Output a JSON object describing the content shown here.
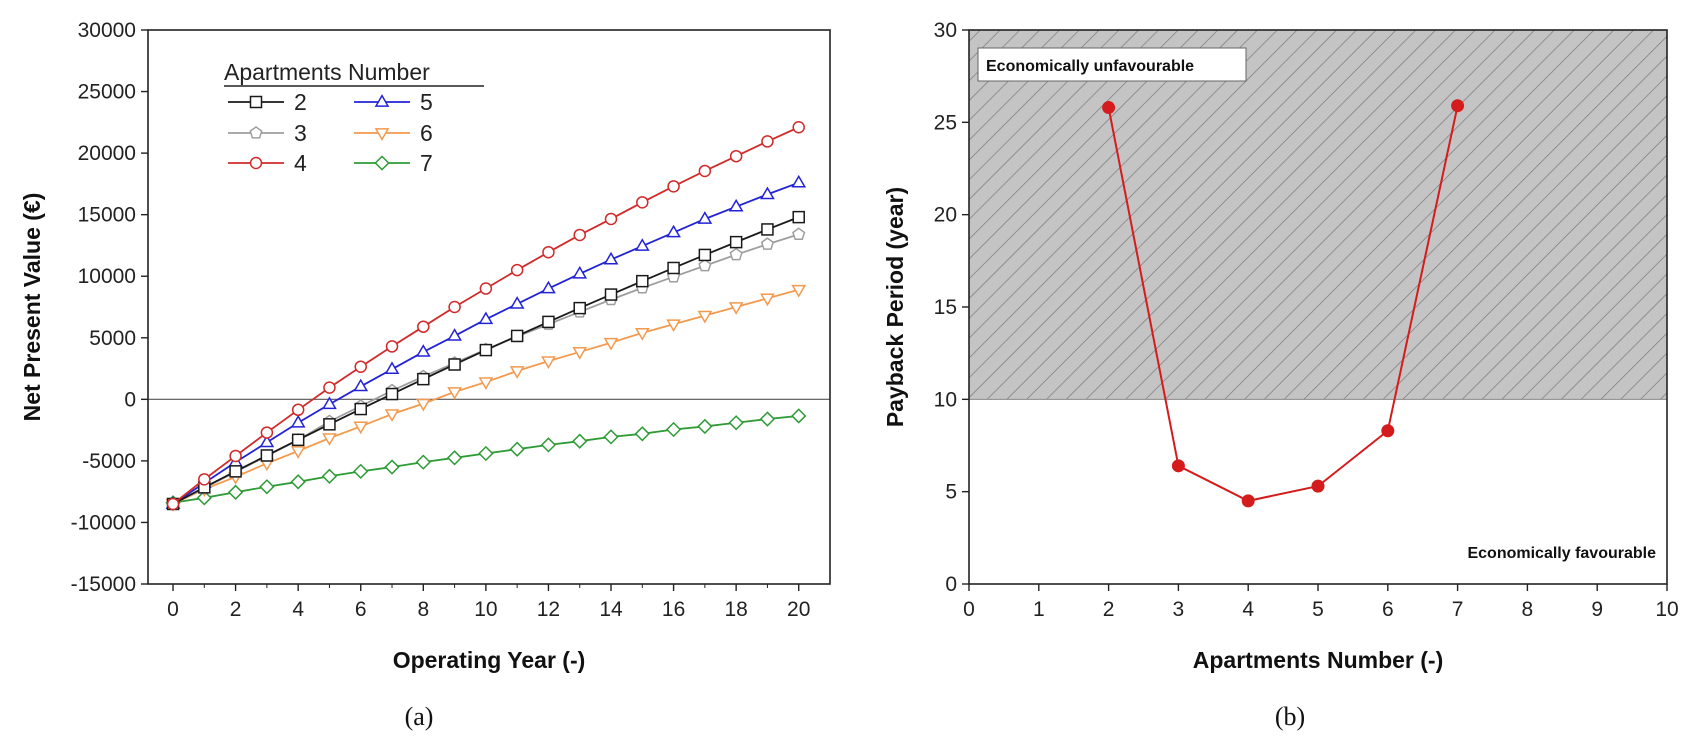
{
  "chart_data": [
    {
      "id": "a",
      "type": "line",
      "caption": "(a)",
      "xlabel": "Operating Year (-)",
      "ylabel": "Net Present Value (€)",
      "xlim": [
        -0.8,
        21
      ],
      "ylim": [
        -15000,
        30000
      ],
      "xticks": [
        0,
        2,
        4,
        6,
        8,
        10,
        12,
        14,
        16,
        18,
        20
      ],
      "yticks": [
        -15000,
        -10000,
        -5000,
        0,
        5000,
        10000,
        15000,
        20000,
        25000,
        30000
      ],
      "reference_line_y": 0,
      "legend_title": "Apartments Number",
      "legend_position": "top-left",
      "x": [
        0,
        1,
        2,
        3,
        4,
        5,
        6,
        7,
        8,
        9,
        10,
        11,
        12,
        13,
        14,
        15,
        16,
        17,
        18,
        19,
        20
      ],
      "series": [
        {
          "name": "2",
          "color": "#1a1a1a",
          "marker": "square",
          "values": [
            -8500,
            -7150,
            -5850,
            -4560,
            -3290,
            -2030,
            -790,
            430,
            1640,
            2830,
            4000,
            5150,
            6290,
            7410,
            8510,
            9600,
            10670,
            11730,
            12770,
            13800,
            14800
          ]
        },
        {
          "name": "3",
          "color": "#9e9e9e",
          "marker": "pentagon",
          "values": [
            -8500,
            -7200,
            -5900,
            -4600,
            -3300,
            -1800,
            -550,
            700,
            1850,
            2950,
            4050,
            5100,
            6100,
            7100,
            8100,
            9050,
            9950,
            10850,
            11750,
            12600,
            13400
          ]
        },
        {
          "name": "4",
          "color": "#d12a2a",
          "marker": "circle",
          "values": [
            -8500,
            -6500,
            -4600,
            -2700,
            -850,
            950,
            2650,
            4300,
            5900,
            7500,
            9000,
            10500,
            11950,
            13350,
            14650,
            16000,
            17300,
            18550,
            19750,
            20950,
            22100
          ]
        },
        {
          "name": "5",
          "color": "#2323d6",
          "marker": "triangle-up",
          "values": [
            -8500,
            -6800,
            -5100,
            -3500,
            -1900,
            -400,
            1050,
            2450,
            3850,
            5150,
            6500,
            7750,
            9000,
            10200,
            11350,
            12450,
            13550,
            14650,
            15650,
            16650,
            17600
          ]
        },
        {
          "name": "6",
          "color": "#f39a4e",
          "marker": "triangle-down",
          "values": [
            -8500,
            -7300,
            -6300,
            -5200,
            -4200,
            -3150,
            -2200,
            -1200,
            -350,
            600,
            1400,
            2300,
            3100,
            3850,
            4600,
            5400,
            6100,
            6800,
            7500,
            8200,
            8900
          ]
        },
        {
          "name": "7",
          "color": "#2e9b35",
          "marker": "diamond",
          "values": [
            -8400,
            -8000,
            -7550,
            -7100,
            -6700,
            -6250,
            -5850,
            -5500,
            -5100,
            -4750,
            -4400,
            -4050,
            -3700,
            -3400,
            -3050,
            -2800,
            -2450,
            -2200,
            -1900,
            -1600,
            -1350
          ]
        }
      ]
    },
    {
      "id": "b",
      "type": "line",
      "caption": "(b)",
      "xlabel": "Apartments Number (-)",
      "ylabel": "Payback Period (year)",
      "xlim": [
        0,
        10
      ],
      "ylim": [
        0,
        30
      ],
      "xticks": [
        0,
        1,
        2,
        3,
        4,
        5,
        6,
        7,
        8,
        9,
        10
      ],
      "yticks": [
        0,
        5,
        10,
        15,
        20,
        25,
        30
      ],
      "threshold_y": 10,
      "region_above_label": "Economically unfavourable",
      "region_below_label": "Economically favourable",
      "series": [
        {
          "name": "Payback Period",
          "color": "#d41c1c",
          "marker": "circle",
          "x": [
            2,
            3,
            4,
            5,
            6,
            7
          ],
          "values": [
            25.8,
            6.4,
            4.5,
            5.3,
            8.3,
            25.9
          ]
        }
      ]
    }
  ]
}
